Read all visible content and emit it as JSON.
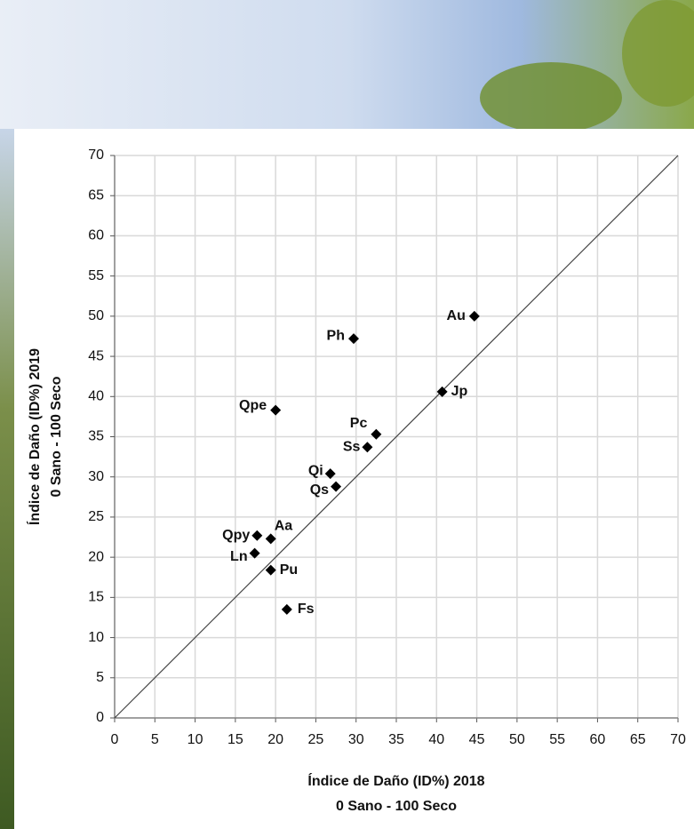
{
  "chart_data": {
    "type": "scatter",
    "xlabel": [
      "Índice de Daño (ID%) 2018",
      "0 Sano - 100 Seco"
    ],
    "ylabel": [
      "Índice de Daño (ID%) 2019",
      "0 Sano - 100 Seco"
    ],
    "labels": [
      "Au",
      "Ph",
      "Jp",
      "Qpe",
      "Pc",
      "Ss",
      "Qi",
      "Qs",
      "Qpy",
      "Aa",
      "Ln",
      "Pu",
      "Fs"
    ],
    "x": [
      44.7,
      29.7,
      40.7,
      20.0,
      32.5,
      31.4,
      26.8,
      27.5,
      17.7,
      19.4,
      17.4,
      19.4,
      21.4
    ],
    "y": [
      50.0,
      47.2,
      40.6,
      38.3,
      35.3,
      33.7,
      30.4,
      28.8,
      22.7,
      22.3,
      20.5,
      18.4,
      13.5
    ],
    "color": "#000000",
    "xlim": [
      0,
      70
    ],
    "ylim": [
      0,
      70
    ],
    "xticks": [
      0,
      5,
      10,
      15,
      20,
      25,
      30,
      35,
      40,
      45,
      50,
      55,
      60,
      65,
      70
    ],
    "yticks": [
      0,
      5,
      10,
      15,
      20,
      25,
      30,
      35,
      40,
      45,
      50,
      55,
      60,
      65,
      70
    ],
    "grid": true,
    "identity_line": true
  }
}
